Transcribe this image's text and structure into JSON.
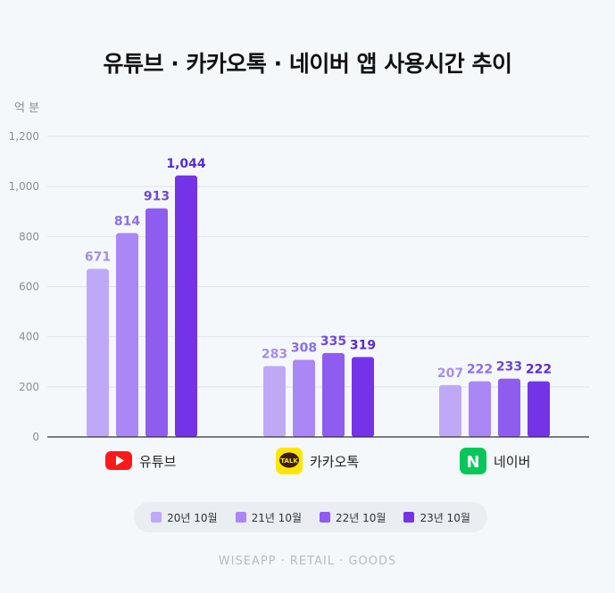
{
  "chart_data": {
    "type": "bar",
    "title": "유튜브 · 카카오톡 · 네이버 앱 사용시간 추이",
    "ylabel": "억 분",
    "ylim": [
      0,
      1200
    ],
    "yticks": [
      "0",
      "200",
      "400",
      "600",
      "800",
      "1,000",
      "1,200"
    ],
    "ytick_values": [
      0,
      200,
      400,
      600,
      800,
      1000,
      1200
    ],
    "categories": [
      "유튜브",
      "카카오톡",
      "네이버"
    ],
    "category_icons": [
      "youtube-logo",
      "kakaotalk-logo",
      "naver-logo"
    ],
    "icon_text": {
      "kakaotalk": "TALK",
      "naver": "N"
    },
    "series": [
      {
        "name": "20년 10월",
        "color": "#bfa8f5",
        "values": [
          671,
          283,
          207
        ],
        "labels": [
          "671",
          "283",
          "207"
        ]
      },
      {
        "name": "21년 10월",
        "color": "#a987f5",
        "values": [
          814,
          308,
          222
        ],
        "labels": [
          "814",
          "308",
          "222"
        ]
      },
      {
        "name": "22년 10월",
        "color": "#8f5cf0",
        "values": [
          913,
          335,
          233
        ],
        "labels": [
          "913",
          "335",
          "233"
        ]
      },
      {
        "name": "23년 10월",
        "color": "#7533e8",
        "values": [
          1044,
          319,
          222
        ],
        "labels": [
          "1,044",
          "319",
          "222"
        ]
      }
    ],
    "label_colors": [
      "#a98ee8",
      "#8e6ee6",
      "#6f48d6",
      "#5a2bc9"
    ],
    "grid": true
  },
  "footer": "WISEAPP · RETAIL · GOODS"
}
